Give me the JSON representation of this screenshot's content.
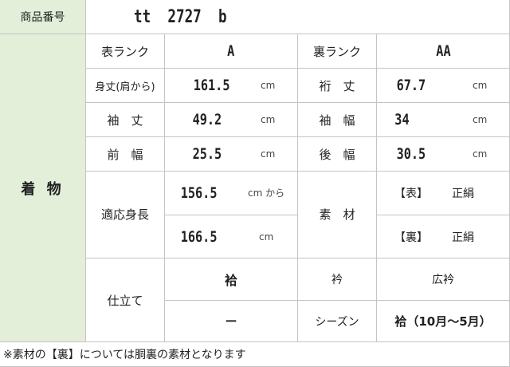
{
  "header": {
    "label": "商品番号",
    "value": "tt  2727  b"
  },
  "section": "着 物",
  "rank": {
    "front_label": "表ランク",
    "front_value": "A",
    "back_label": "裏ランク",
    "back_value": "AA"
  },
  "measure": [
    {
      "l1": "身丈(肩から)",
      "v1": "161.5",
      "u1": "cm",
      "l2": "裄　丈",
      "v2": "67.7",
      "u2": "cm"
    },
    {
      "l1": "袖　丈",
      "v1": "49.2",
      "u1": "cm",
      "l2": "袖　幅",
      "v2": "34",
      "u2": "cm"
    },
    {
      "l1": "前　幅",
      "v1": "25.5",
      "u1": "cm",
      "l2": "後　幅",
      "v2": "30.5",
      "u2": "cm"
    }
  ],
  "fit": {
    "label": "適応身長",
    "min": "156.5",
    "min_unit": "cm から",
    "max": "166.5",
    "max_unit": "cm"
  },
  "material": {
    "label": "素　材",
    "front_tag": "【表】",
    "front_value": "正絹",
    "back_tag": "【裏】",
    "back_value": "正絹"
  },
  "tailoring": {
    "label": "仕立て",
    "value": "袷",
    "collar_label": "衿",
    "collar_value": "広衿",
    "extra": "ー",
    "season_label": "シーズン",
    "season_value": "袷（10月～5月）"
  },
  "note": "※素材の【裏】については胴裏の素材となります",
  "colors": {
    "label_bg": "#e3efd9",
    "border": "#c4c4c4"
  }
}
